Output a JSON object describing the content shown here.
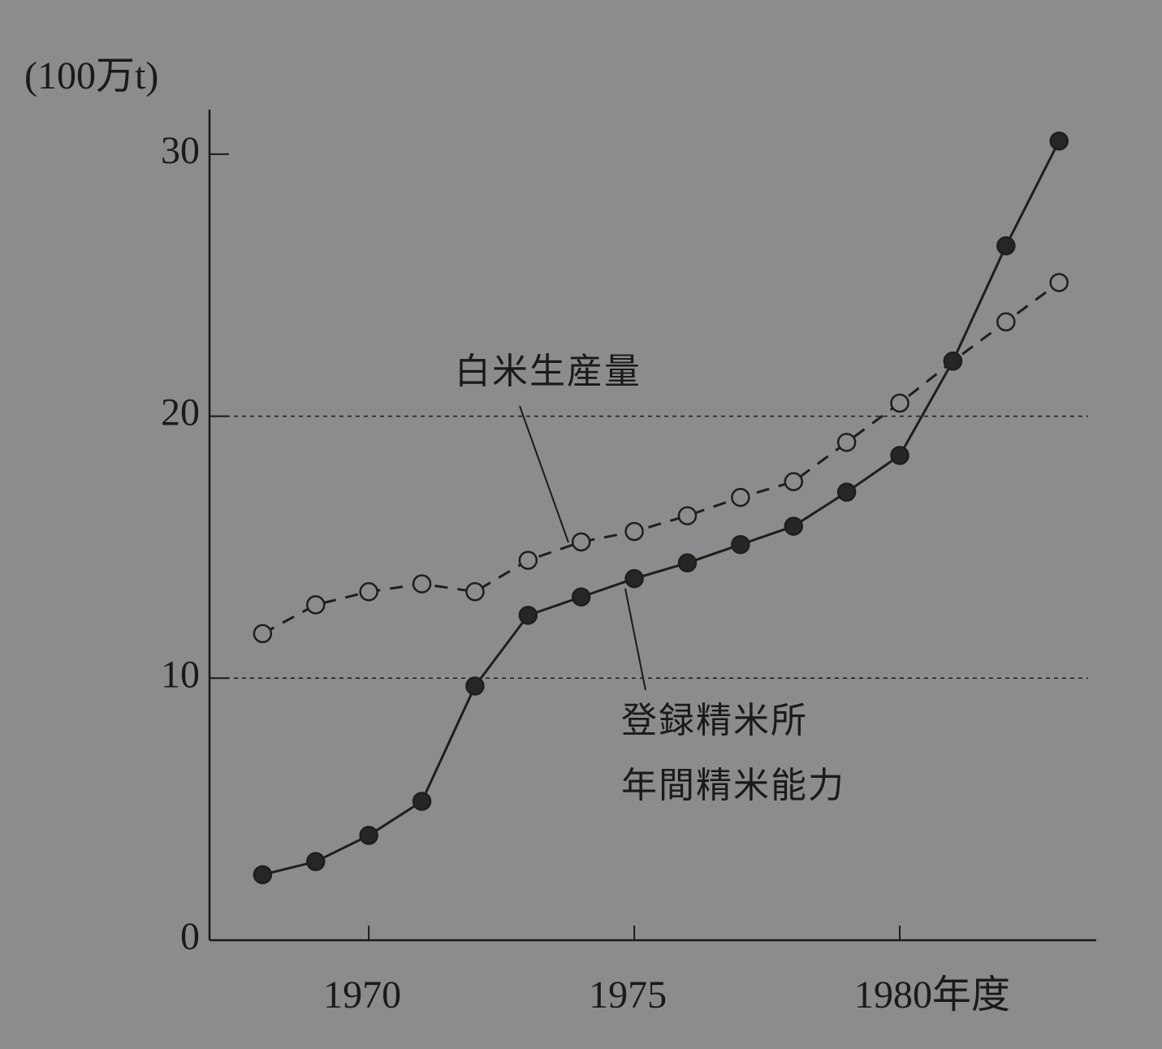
{
  "chart_data": {
    "type": "line",
    "y_axis_label": "(100万t)",
    "x": [
      1968,
      1969,
      1970,
      1971,
      1972,
      1973,
      1974,
      1975,
      1976,
      1977,
      1978,
      1979,
      1980,
      1981,
      1982,
      1983
    ],
    "series": [
      {
        "name": "白米生産量",
        "color": "#1e1e1e",
        "line_style": "dashed",
        "marker": "open",
        "values": [
          11.7,
          12.8,
          13.3,
          13.6,
          13.3,
          14.5,
          15.2,
          15.6,
          16.2,
          16.9,
          17.5,
          19.0,
          20.5,
          22.1,
          23.6,
          25.1
        ]
      },
      {
        "name": "登録精米所\n年間精米能力",
        "color": "#1e1e1e",
        "line_style": "solid",
        "marker": "filled",
        "values": [
          2.5,
          3.0,
          4.0,
          5.3,
          9.7,
          12.4,
          13.1,
          13.8,
          14.4,
          15.1,
          15.8,
          17.1,
          18.5,
          22.1,
          26.5,
          30.5
        ]
      }
    ],
    "xlim": [
      1967,
      1983.7
    ],
    "xticks": [
      1970,
      1975,
      {
        "value": 1980,
        "label": "1980年度"
      }
    ],
    "ylim": [
      0,
      31.7
    ],
    "yticks": [
      0,
      10,
      20,
      30
    ],
    "grid": true
  }
}
